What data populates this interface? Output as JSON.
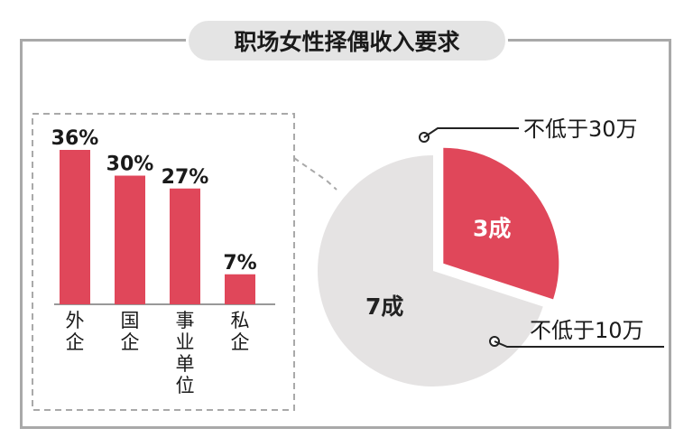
{
  "title": "职场女性择偶收入要求",
  "colors": {
    "accent": "#e0475a",
    "gray_slice": "#e5e3e3",
    "frame": "#a9a9a9",
    "text": "#1a1a1a"
  },
  "chart_data": [
    {
      "type": "pie",
      "title": "",
      "slices": [
        {
          "label": "不低于30万",
          "value": 3,
          "value_label": "3成",
          "color": "#e0475a"
        },
        {
          "label": "不低于10万",
          "value": 7,
          "value_label": "7成",
          "color": "#e5e3e3"
        }
      ],
      "exploded": "不低于30万"
    },
    {
      "type": "bar",
      "title": "",
      "categories": [
        "外企",
        "国企",
        "事业单位",
        "私企"
      ],
      "values": [
        36,
        30,
        27,
        7
      ],
      "value_labels": [
        "36%",
        "30%",
        "27%",
        "7%"
      ],
      "unit": "%",
      "ylim": [
        0,
        40
      ],
      "color": "#e0475a",
      "grid": false,
      "detail_of": "不低于30万"
    }
  ]
}
